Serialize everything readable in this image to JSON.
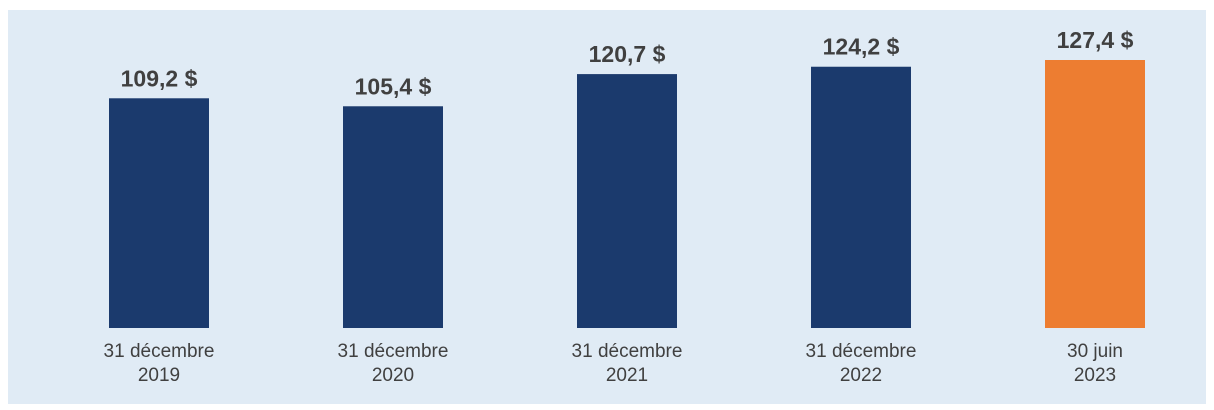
{
  "chart_data": {
    "type": "bar",
    "categories": [
      [
        "31 décembre",
        "2019"
      ],
      [
        "31 décembre",
        "2020"
      ],
      [
        "31 décembre",
        "2021"
      ],
      [
        "31 décembre",
        "2022"
      ],
      [
        "30 juin",
        "2023"
      ]
    ],
    "values": [
      109.2,
      105.4,
      120.7,
      124.2,
      127.4
    ],
    "value_labels": [
      "109,2 $",
      "105,4 $",
      "120,7 $",
      "124,2 $",
      "127,4 $"
    ],
    "bar_colors": [
      "#1b3a6d",
      "#1b3a6d",
      "#1b3a6d",
      "#1b3a6d",
      "#ed7d31"
    ],
    "title": "",
    "xlabel": "",
    "ylabel": "",
    "grid": false,
    "legend": "none"
  },
  "colors": {
    "background": "#e0ebf5",
    "primary_bar": "#1b3a6d",
    "highlight_bar": "#ed7d31",
    "text": "#404040"
  }
}
